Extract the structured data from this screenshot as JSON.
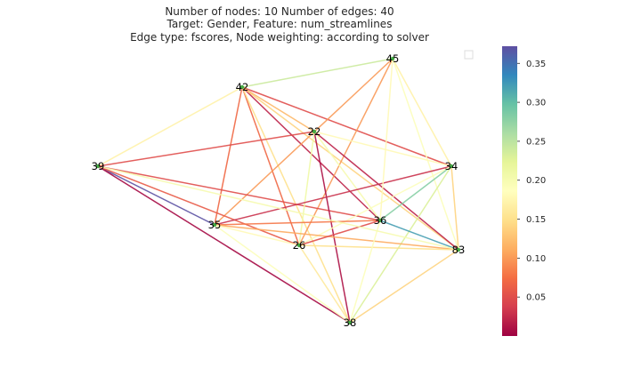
{
  "title": {
    "line1": "Number of nodes: 10 Number of edges: 40",
    "line2": "Target: Gender, Feature: num_streamlines",
    "line3": "Edge type: fscores, Node weighting: according to solver"
  },
  "colorbar": {
    "vmin": 0.0,
    "vmax": 0.372,
    "colormap": "Spectral",
    "ticks": [
      "0.05",
      "0.10",
      "0.15",
      "0.20",
      "0.25",
      "0.30",
      "0.35"
    ],
    "tick_values": [
      0.05,
      0.1,
      0.15,
      0.2,
      0.25,
      0.3,
      0.35
    ]
  },
  "nodes": [
    "45",
    "42",
    "22",
    "39",
    "34",
    "36",
    "35",
    "26",
    "83",
    "38"
  ],
  "node_color": "#44aa44",
  "edges": [
    {
      "from": "42",
      "to": "45",
      "value": 0.24
    },
    {
      "from": "42",
      "to": "39",
      "value": 0.17
    },
    {
      "from": "42",
      "to": "34",
      "value": 0.05
    },
    {
      "from": "42",
      "to": "35",
      "value": 0.07
    },
    {
      "from": "42",
      "to": "36",
      "value": 0.02
    },
    {
      "from": "42",
      "to": "26",
      "value": 0.07
    },
    {
      "from": "42",
      "to": "83",
      "value": 0.14
    },
    {
      "from": "42",
      "to": "38",
      "value": 0.15
    },
    {
      "from": "42",
      "to": "22",
      "value": 0.12
    },
    {
      "from": "45",
      "to": "35",
      "value": 0.1
    },
    {
      "from": "45",
      "to": "26",
      "value": 0.1
    },
    {
      "from": "45",
      "to": "34",
      "value": 0.17
    },
    {
      "from": "45",
      "to": "83",
      "value": 0.19
    },
    {
      "from": "39",
      "to": "22",
      "value": 0.05
    },
    {
      "from": "39",
      "to": "36",
      "value": 0.05
    },
    {
      "from": "39",
      "to": "35",
      "value": 0.37
    },
    {
      "from": "39",
      "to": "38",
      "value": 0.005
    },
    {
      "from": "39",
      "to": "26",
      "value": 0.06
    },
    {
      "from": "22",
      "to": "83",
      "value": 0.02
    },
    {
      "from": "22",
      "to": "38",
      "value": 0.01
    },
    {
      "from": "22",
      "to": "34",
      "value": 0.18
    },
    {
      "from": "22",
      "to": "26",
      "value": 0.21
    },
    {
      "from": "22",
      "to": "36",
      "value": 0.2
    },
    {
      "from": "34",
      "to": "35",
      "value": 0.03
    },
    {
      "from": "34",
      "to": "36",
      "value": 0.28
    },
    {
      "from": "34",
      "to": "83",
      "value": 0.14
    },
    {
      "from": "34",
      "to": "26",
      "value": 0.19
    },
    {
      "from": "34",
      "to": "38",
      "value": 0.23
    },
    {
      "from": "35",
      "to": "36",
      "value": 0.08
    },
    {
      "from": "35",
      "to": "83",
      "value": 0.11
    },
    {
      "from": "35",
      "to": "38",
      "value": 0.19
    },
    {
      "from": "26",
      "to": "36",
      "value": 0.05
    },
    {
      "from": "26",
      "to": "83",
      "value": 0.15
    },
    {
      "from": "26",
      "to": "38",
      "value": 0.16
    },
    {
      "from": "36",
      "to": "83",
      "value": 0.32
    },
    {
      "from": "36",
      "to": "38",
      "value": 0.19
    },
    {
      "from": "83",
      "to": "38",
      "value": 0.14
    },
    {
      "from": "35",
      "to": "26",
      "value": 0.18
    },
    {
      "from": "36",
      "to": "45",
      "value": 0.18
    },
    {
      "from": "39",
      "to": "83",
      "value": 0.2
    }
  ]
}
